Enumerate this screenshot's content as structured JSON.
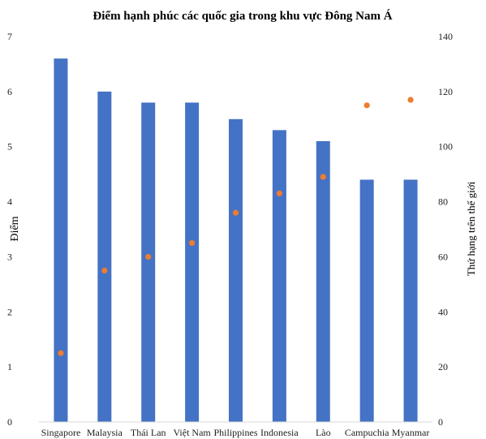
{
  "chart_data": {
    "type": "bar",
    "title": "Điểm hạnh phúc các quốc gia trong khu vực Đông Nam Á",
    "ylabel": "Điểm",
    "y2label": "Thứ hạng trên thế giới",
    "categories": [
      "Singapore",
      "Malaysia",
      "Thái Lan",
      "Việt Nam",
      "Philippines",
      "Indonesia",
      "Lào",
      "Campuchia",
      "Myanmar"
    ],
    "ylim": [
      0,
      7
    ],
    "y2lim": [
      0,
      140
    ],
    "yticks": [
      0,
      1,
      2,
      3,
      4,
      5,
      6,
      7
    ],
    "y2ticks": [
      0,
      20,
      40,
      60,
      80,
      100,
      120,
      140
    ],
    "series": [
      {
        "type": "bar",
        "axis": "left",
        "color": "#4472C4",
        "values": [
          6.6,
          6.0,
          5.8,
          5.8,
          5.5,
          5.3,
          5.1,
          4.4,
          4.4
        ]
      },
      {
        "type": "scatter",
        "axis": "right",
        "color": "#ED7D31",
        "values": [
          25,
          55,
          60,
          65,
          76,
          83,
          89,
          115,
          117
        ]
      }
    ],
    "grid": false,
    "legend": false
  }
}
